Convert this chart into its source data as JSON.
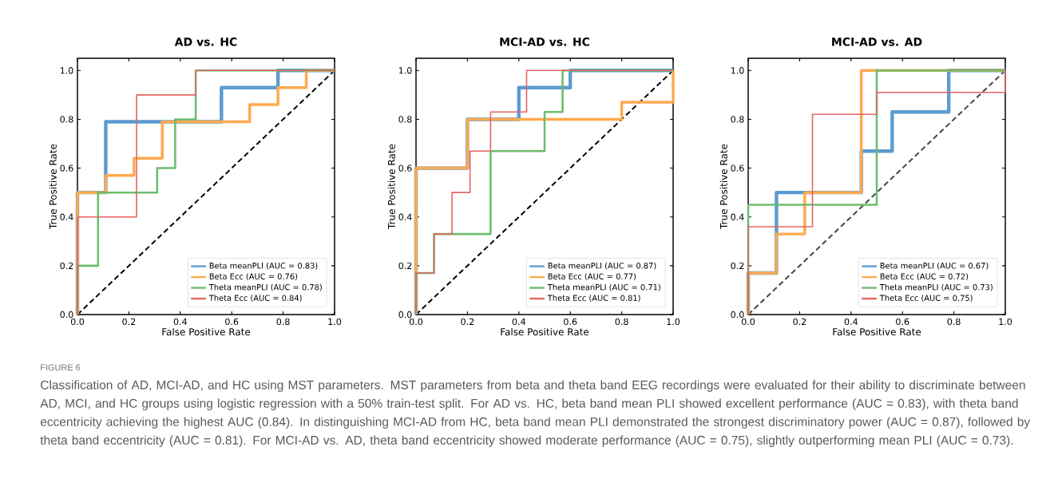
{
  "chart_data": [
    {
      "type": "line",
      "title": "AD vs. HC",
      "xlabel": "False Positive Rate",
      "ylabel": "True Positive Rate",
      "xlim": [
        0,
        1
      ],
      "ylim": [
        0,
        1.05
      ],
      "xticks": [
        {
          "value": 0,
          "label": "0.0"
        },
        {
          "value": 0.2,
          "label": "0.2"
        },
        {
          "value": 0.4,
          "label": "0.4"
        },
        {
          "value": 0.6,
          "label": "0.6"
        },
        {
          "value": 0.8,
          "label": "0.8"
        },
        {
          "value": 1,
          "label": "1.0"
        }
      ],
      "yticks": [
        {
          "value": 0,
          "label": "0.0"
        },
        {
          "value": 0.2,
          "label": "0.2"
        },
        {
          "value": 0.4,
          "label": "0.4"
        },
        {
          "value": 0.6,
          "label": "0.6"
        },
        {
          "value": 0.8,
          "label": "0.8"
        },
        {
          "value": 1,
          "label": "1.0"
        }
      ],
      "legend": "bottom right",
      "series": [
        {
          "name": "Beta meanPLI (AUC = 0.83)",
          "color": "#5b9bd1",
          "x": [
            0,
            0,
            0.11,
            0.11,
            0.56,
            0.56,
            0.78,
            0.78,
            1
          ],
          "values": [
            0,
            0.5,
            0.5,
            0.79,
            0.79,
            0.93,
            0.93,
            1,
            1
          ]
        },
        {
          "name": "Beta Ecc (AUC = 0.76)",
          "color": "#ffa94f",
          "x": [
            0,
            0,
            0.11,
            0.11,
            0.22,
            0.22,
            0.33,
            0.33,
            0.67,
            0.67,
            0.78,
            0.78,
            0.89,
            0.89,
            1
          ],
          "values": [
            0,
            0.5,
            0.5,
            0.57,
            0.57,
            0.64,
            0.64,
            0.79,
            0.79,
            0.86,
            0.86,
            0.93,
            0.93,
            1,
            1
          ]
        },
        {
          "name": "Theta meanPLI (AUC = 0.78)",
          "color": "#6cbd6c",
          "x": [
            0,
            0,
            0.08,
            0.08,
            0.31,
            0.31,
            0.38,
            0.38,
            0.46,
            0.46,
            1
          ],
          "values": [
            0,
            0.2,
            0.2,
            0.5,
            0.5,
            0.6,
            0.6,
            0.8,
            0.8,
            1,
            1
          ]
        },
        {
          "name": "Theta Ecc (AUC = 0.84)",
          "color": "#e46565",
          "x": [
            0,
            0,
            0.23,
            0.23,
            0.46,
            0.46,
            1
          ],
          "values": [
            0,
            0.4,
            0.4,
            0.9,
            0.9,
            1,
            1
          ]
        },
        {
          "color": "#000000",
          "line_style": "dashed",
          "x": [
            0,
            1
          ],
          "values": [
            0,
            1
          ]
        }
      ],
      "annotations": [
        "FIGURE 6",
        "Classification of AD, MCI-AD, and HC using MST parameters. MST parameters from beta and theta band EEG recordings were evaluated for their ability to discriminate between AD, MCI, and HC groups using logistic regression with a 50% train-test split. For AD vs. HC, beta band mean PLI showed excellent performance (AUC = 0.83), with theta band eccentricity achieving the highest AUC (0.84). In distinguishing MCI-AD from HC, beta band mean PLI demonstrated the strongest discriminatory power (AUC = 0.87), followed by theta band eccentricity (AUC = 0.81). For MCI-AD vs. AD, theta band eccentricity showed moderate performance (AUC = 0.75), slightly outperforming mean PLI (AUC = 0.73)."
      ]
    },
    {
      "type": "line",
      "title": "MCI-AD vs. HC",
      "xlabel": "False Positive Rate",
      "ylabel": "True Positive Rate",
      "xlim": [
        0,
        1
      ],
      "ylim": [
        0,
        1.05
      ],
      "xticks": [
        {
          "value": 0,
          "label": "0.0"
        },
        {
          "value": 0.2,
          "label": "0.2"
        },
        {
          "value": 0.4,
          "label": "0.4"
        },
        {
          "value": 0.6,
          "label": "0.6"
        },
        {
          "value": 0.8,
          "label": "0.8"
        },
        {
          "value": 1,
          "label": "1.0"
        }
      ],
      "yticks": [
        {
          "value": 0,
          "label": "0.0"
        },
        {
          "value": 0.2,
          "label": "0.2"
        },
        {
          "value": 0.4,
          "label": "0.4"
        },
        {
          "value": 0.6,
          "label": "0.6"
        },
        {
          "value": 0.8,
          "label": "0.8"
        },
        {
          "value": 1,
          "label": "1.0"
        }
      ],
      "legend": "bottom right",
      "series": [
        {
          "name": "Beta meanPLI (AUC = 0.87)",
          "color": "#5b9bd1",
          "x": [
            0,
            0,
            0.2,
            0.2,
            0.4,
            0.4,
            0.6,
            0.6,
            1
          ],
          "values": [
            0,
            0.6,
            0.6,
            0.8,
            0.8,
            0.93,
            0.93,
            1,
            1
          ]
        },
        {
          "name": "Beta Ecc (AUC = 0.77)",
          "color": "#ffa94f",
          "x": [
            0,
            0,
            0.2,
            0.2,
            0.8,
            0.8,
            1,
            1
          ],
          "values": [
            0,
            0.6,
            0.6,
            0.8,
            0.8,
            0.87,
            0.87,
            1
          ]
        },
        {
          "name": "Theta meanPLI (AUC = 0.71)",
          "color": "#6cbd6c",
          "x": [
            0,
            0,
            0.07,
            0.07,
            0.29,
            0.29,
            0.5,
            0.5,
            0.57,
            0.57,
            1
          ],
          "values": [
            0,
            0.17,
            0.17,
            0.33,
            0.33,
            0.67,
            0.67,
            0.83,
            0.83,
            1,
            1
          ]
        },
        {
          "name": "Theta Ecc (AUC = 0.81)",
          "color": "#e46565",
          "x": [
            0,
            0,
            0.07,
            0.07,
            0.14,
            0.14,
            0.21,
            0.21,
            0.29,
            0.29,
            0.43,
            0.43,
            1
          ],
          "values": [
            0,
            0.17,
            0.17,
            0.33,
            0.33,
            0.5,
            0.5,
            0.67,
            0.67,
            0.83,
            0.83,
            1,
            1
          ]
        },
        {
          "color": "#000000",
          "line_style": "dashed",
          "x": [
            0,
            1
          ],
          "values": [
            0,
            1
          ]
        }
      ]
    },
    {
      "type": "line",
      "title": "MCI-AD vs. AD",
      "xlabel": "False Positive Rate",
      "ylabel": "True Positive Rate",
      "xlim": [
        0,
        1
      ],
      "ylim": [
        0,
        1.05
      ],
      "xticks": [
        {
          "value": 0,
          "label": "0.0"
        },
        {
          "value": 0.2,
          "label": "0.2"
        },
        {
          "value": 0.4,
          "label": "0.4"
        },
        {
          "value": 0.6,
          "label": "0.6"
        },
        {
          "value": 0.8,
          "label": "0.8"
        },
        {
          "value": 1,
          "label": "1.0"
        }
      ],
      "yticks": [
        {
          "value": 0,
          "label": "0.0"
        },
        {
          "value": 0.2,
          "label": "0.2"
        },
        {
          "value": 0.4,
          "label": "0.4"
        },
        {
          "value": 0.6,
          "label": "0.6"
        },
        {
          "value": 0.8,
          "label": "0.8"
        },
        {
          "value": 1,
          "label": "1.0"
        }
      ],
      "legend": "bottom right",
      "series": [
        {
          "name": "Beta meanPLI (AUC = 0.67)",
          "color": "#5b9bd1",
          "x": [
            0,
            0,
            0.11,
            0.11,
            0.44,
            0.44,
            0.56,
            0.56,
            0.78,
            0.78,
            1
          ],
          "values": [
            0,
            0.17,
            0.17,
            0.5,
            0.5,
            0.67,
            0.67,
            0.83,
            0.83,
            1,
            1
          ]
        },
        {
          "name": "Beta Ecc (AUC = 0.72)",
          "color": "#ffa94f",
          "x": [
            0,
            0,
            0.11,
            0.11,
            0.22,
            0.22,
            0.44,
            0.44,
            1
          ],
          "values": [
            0,
            0.17,
            0.17,
            0.33,
            0.33,
            0.5,
            0.5,
            1,
            1
          ]
        },
        {
          "name": "Theta meanPLI (AUC = 0.73)",
          "color": "#6cbd6c",
          "x": [
            0,
            0,
            0.5,
            0.5,
            1
          ],
          "values": [
            0,
            0.45,
            0.45,
            1,
            1
          ]
        },
        {
          "name": "Theta Ecc (AUC = 0.75)",
          "color": "#e46565",
          "x": [
            0,
            0,
            0.25,
            0.25,
            0.5,
            0.5,
            1,
            1
          ],
          "values": [
            0,
            0.36,
            0.36,
            0.82,
            0.82,
            0.91,
            0.91,
            1
          ]
        },
        {
          "color": "#444444",
          "line_style": "dashed",
          "x": [
            0,
            1
          ],
          "values": [
            0,
            1
          ]
        }
      ]
    }
  ]
}
